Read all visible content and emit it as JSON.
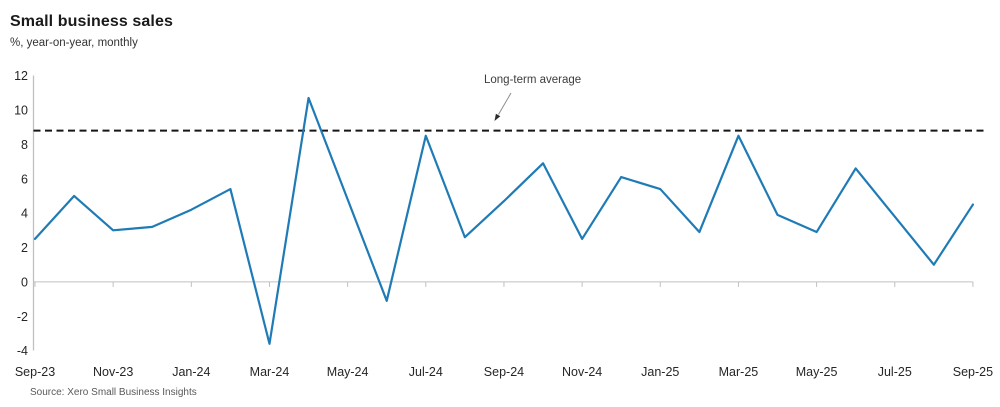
{
  "header": {
    "title": "Small business sales",
    "subtitle": "%, year-on-year, monthly"
  },
  "chart_data": {
    "type": "line",
    "title": "Small business sales",
    "ylabel": "%, year-on-year, monthly",
    "x": [
      "Sep-23",
      "Oct-23",
      "Nov-23",
      "Dec-23",
      "Jan-24",
      "Feb-24",
      "Mar-24",
      "Apr-24",
      "May-24",
      "Jun-24",
      "Jul-24",
      "Aug-24",
      "Sep-24",
      "Oct-24",
      "Nov-24",
      "Dec-24",
      "Jan-25",
      "Feb-25",
      "Mar-25",
      "Apr-25",
      "May-25",
      "Jun-25",
      "Jul-25",
      "Aug-25",
      "Sep-25"
    ],
    "values": [
      2.5,
      5.0,
      3.0,
      3.2,
      4.2,
      5.4,
      -3.6,
      10.7,
      4.8,
      -1.1,
      8.5,
      2.6,
      4.7,
      6.9,
      2.5,
      6.1,
      5.4,
      2.9,
      8.5,
      3.9,
      2.9,
      6.6,
      3.8,
      1.0,
      4.5
    ],
    "xtick_labels": [
      "Sep-23",
      "Nov-23",
      "Jan-24",
      "Mar-24",
      "May-24",
      "Jul-24",
      "Sep-24",
      "Nov-24",
      "Jan-25",
      "Mar-25",
      "May-25",
      "Jul-25",
      "Sep-25"
    ],
    "ytick_labels": [
      "12",
      "10",
      "8",
      "6",
      "4",
      "2",
      "0",
      "-2",
      "-4"
    ],
    "ytick_values": [
      12,
      10,
      8,
      6,
      4,
      2,
      0,
      -2,
      -4
    ],
    "ylim": [
      -4,
      12
    ],
    "long_term_average": 8.8,
    "annotation": {
      "label": "Long-term average"
    },
    "grid": "off",
    "legend": "none",
    "colors": {
      "line": "#1f7bb6",
      "average_line": "#161616",
      "axis": "#c0c0c0",
      "tick_text": "#262626"
    }
  },
  "footer": {
    "source": "Source: Xero Small Business Insights"
  }
}
